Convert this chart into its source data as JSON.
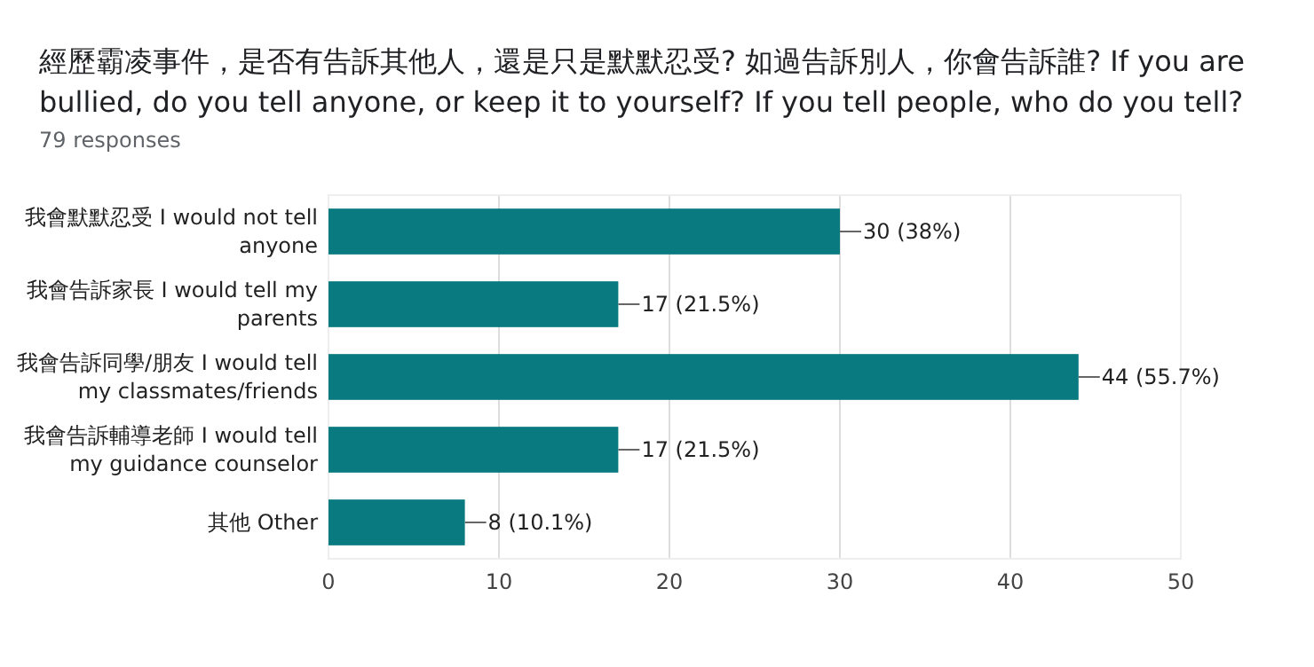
{
  "chart_data": {
    "type": "bar",
    "orientation": "horizontal",
    "title": "經歷霸凌事件，是否有告訴其他人，還是只是默默忍受? 如過告訴別人，你會告訴誰?  If you are bullied, do you tell anyone, or keep it to yourself? If you tell people, who do you tell?",
    "subtitle": "79 responses",
    "categories": [
      "我會默默忍受 I would not tell anyone",
      "我會告訴家長 I would tell my parents",
      "我會告訴同學/朋友 I would tell my classmates/friends",
      "我會告訴輔導老師 I would tell my guidance counselor",
      "其他 Other"
    ],
    "values": [
      30,
      17,
      44,
      17,
      8
    ],
    "value_labels": [
      "30 (38%)",
      "17 (21.5%)",
      "44 (55.7%)",
      "17 (21.5%)",
      "8 (10.1%)"
    ],
    "color": "#087a80",
    "xlim": [
      0,
      50
    ],
    "xticks": [
      0,
      10,
      20,
      30,
      40,
      50
    ],
    "grid": "x"
  }
}
